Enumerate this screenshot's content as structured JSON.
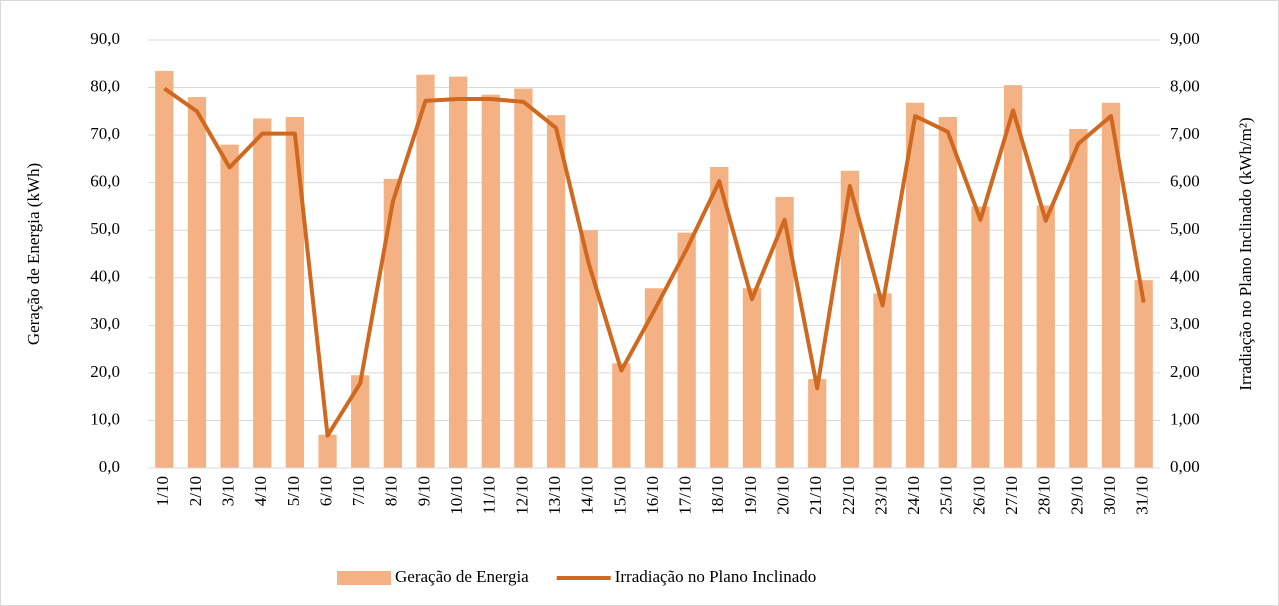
{
  "chart_data": {
    "type": "bar-line",
    "categories": [
      "1/10",
      "2/10",
      "3/10",
      "4/10",
      "5/10",
      "6/10",
      "7/10",
      "8/10",
      "9/10",
      "10/10",
      "11/10",
      "12/10",
      "13/10",
      "14/10",
      "15/10",
      "16/10",
      "17/10",
      "18/10",
      "19/10",
      "20/10",
      "21/10",
      "22/10",
      "23/10",
      "24/10",
      "25/10",
      "26/10",
      "27/10",
      "28/10",
      "29/10",
      "30/10",
      "31/10"
    ],
    "series": [
      {
        "name": "Geração de Energia",
        "type": "bar",
        "color": "#f4b183",
        "values": [
          83.5,
          78,
          68,
          73.5,
          73.8,
          7,
          19.5,
          60.8,
          82.7,
          82.3,
          78.5,
          79.8,
          74.2,
          50,
          22,
          37.8,
          49.5,
          63.3,
          37.8,
          57,
          18.7,
          62.5,
          36.7,
          76.8,
          73.8,
          55,
          80.5,
          55.2,
          71.3,
          76.8,
          39.5
        ]
      },
      {
        "name": "Irradiação no Plano Inclinado",
        "type": "line",
        "axis": "y2",
        "color": "#d0691f",
        "values": [
          7.98,
          7.5,
          6.32,
          7.03,
          7.03,
          0.68,
          1.78,
          5.6,
          7.72,
          7.76,
          7.76,
          7.7,
          7.15,
          4.3,
          2.05,
          3.3,
          4.6,
          6.03,
          3.55,
          5.22,
          1.68,
          5.93,
          3.42,
          7.4,
          7.07,
          5.22,
          7.52,
          5.2,
          6.82,
          7.4,
          3.48
        ]
      }
    ],
    "y_label": "Geração  de Energia (kWh)",
    "y2_label": "Irradiação no Plano Inclinado (kWh/m²)",
    "ylim": [
      0,
      90
    ],
    "yticks": [
      {
        "value": 0,
        "label": "0,0"
      },
      {
        "value": 10,
        "label": "10,0"
      },
      {
        "value": 20,
        "label": "20,0"
      },
      {
        "value": 30,
        "label": "30,0"
      },
      {
        "value": 40,
        "label": "40,0"
      },
      {
        "value": 50,
        "label": "50,0"
      },
      {
        "value": 60,
        "label": "60,0"
      },
      {
        "value": 70,
        "label": "70,0"
      },
      {
        "value": 80,
        "label": "80,0"
      },
      {
        "value": 90,
        "label": "90,0"
      }
    ],
    "y2lim": [
      0,
      9
    ],
    "y2ticks": [
      {
        "value": 0,
        "label": "0,00"
      },
      {
        "value": 1,
        "label": "1,00"
      },
      {
        "value": 2,
        "label": "2,00"
      },
      {
        "value": 3,
        "label": "3,00"
      },
      {
        "value": 4,
        "label": "4,00"
      },
      {
        "value": 5,
        "label": "5,00"
      },
      {
        "value": 6,
        "label": "6,00"
      },
      {
        "value": 7,
        "label": "7,00"
      },
      {
        "value": 8,
        "label": "8,00"
      },
      {
        "value": 9,
        "label": "9,00"
      }
    ],
    "grid": true,
    "legend": "bottom"
  }
}
